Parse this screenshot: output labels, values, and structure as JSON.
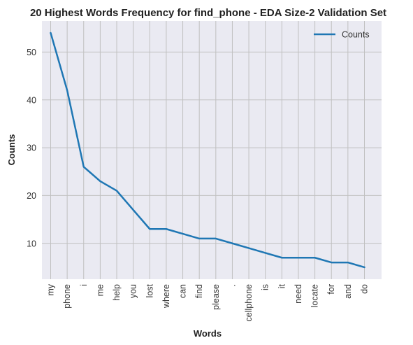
{
  "chart_data": {
    "type": "line",
    "title": "20 Highest Words Frequency for find_phone - EDA Size-2 Validation Set",
    "xlabel": "Words",
    "ylabel": "Counts",
    "categories": [
      "my",
      "phone",
      "i",
      "me",
      "help",
      "you",
      "lost",
      "where",
      "can",
      "find",
      "please",
      ".",
      "cellphone",
      "is",
      "it",
      "need",
      "locate",
      "for",
      "and",
      "do"
    ],
    "series": [
      {
        "name": "Counts",
        "values": [
          54,
          42,
          26,
          23,
          21,
          17,
          13,
          13,
          12,
          11,
          11,
          10,
          9,
          8,
          7,
          7,
          7,
          6,
          6,
          5
        ]
      }
    ],
    "ylim": [
      2.5,
      56.5
    ],
    "yticks": [
      10,
      20,
      30,
      40,
      50
    ],
    "grid": true,
    "legend_position": "top-right",
    "colors": {
      "background": "#eaeaf2",
      "grid": "#c0c0c0",
      "line": "#1f77b4"
    }
  }
}
